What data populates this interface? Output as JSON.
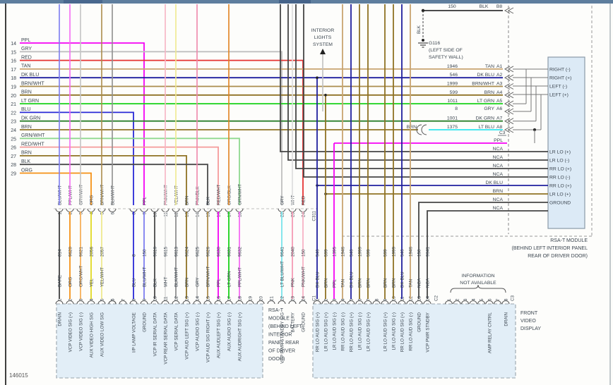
{
  "page": {
    "doc_number": "146015"
  },
  "colors": {
    "PPL": "#f400f4",
    "GRY": "#bfbfbf",
    "RED": "#e53333",
    "TAN": "#c9a470",
    "DK BLU": "#1f1f9e",
    "BRN/WHT": "#ab8c4c",
    "BRN": "#8f7224",
    "LT GRN": "#17d117",
    "BLU": "#2929d6",
    "DK GRN": "#2a7f2a",
    "GRN/WHT": "#8fd98f",
    "RED/WHT": "#f59a9a",
    "BLK": "#4a4a4a",
    "ORG": "#f59116",
    "PPL/WHT": "#f46bf4",
    "GRY/WHT": "#c4c4c4",
    "ORG/WHT": "#f5b05a",
    "YEL": "#e0d81f",
    "YEL/WHT": "#efe98f",
    "BLU/WHT": "#7d7df0",
    "BLK/WHT": "#8f8f8f",
    "WHT": "#dcdcdc",
    "PNK/WHT": "#f7b3c4",
    "PNK/BLK": "#ef86ab",
    "ORG/BLK": "#e0821f",
    "LT BLU": "#2ee4ef",
    "LT BLU/WHT": "#79e4ea",
    "PNK": "#f49ab4",
    "BARE": "#3f3f3f",
    "NCA": "#454545",
    "accent_bar": "#5e7e9e",
    "box_fill": "#e2eef7",
    "module_fill": "#dceaf6",
    "text": "#3c4650",
    "gray_wire": "#8f8f8f"
  },
  "interior_lights_note": {
    "lines": [
      "INTERIOR",
      "LIGHTS",
      "SYSTEM"
    ]
  },
  "ground_ref": {
    "b8_circuit": "150",
    "b8_color": "BLK",
    "b8_pin": "B8",
    "wire_color_label": "BLK",
    "id": "G116",
    "location_lines": [
      "(LEFT SIDE OF",
      "SAFETY WALL)"
    ]
  },
  "left_wires": [
    {
      "pin": "14",
      "color": "PPL"
    },
    {
      "pin": "15",
      "color": "GRY"
    },
    {
      "pin": "16",
      "color": "RED"
    },
    {
      "pin": "17",
      "color": "TAN"
    },
    {
      "pin": "18",
      "color": "DK BLU"
    },
    {
      "pin": "19",
      "color": "BRN/WHT"
    },
    {
      "pin": "20",
      "color": "BRN"
    },
    {
      "pin": "21",
      "color": "LT GRN"
    },
    {
      "pin": "22",
      "color": "BLU"
    },
    {
      "pin": "23",
      "color": "DK GRN"
    },
    {
      "pin": "24",
      "color": "BRN"
    },
    {
      "pin": "25",
      "color": "GRN/WHT"
    },
    {
      "pin": "26",
      "color": "RED/WHT"
    },
    {
      "pin": "27",
      "color": "BRN"
    },
    {
      "pin": "28",
      "color": "BLK"
    },
    {
      "pin": "29",
      "color": "ORG"
    }
  ],
  "rsa_module": {
    "a_pins": [
      {
        "circuit": "1946",
        "color": "TAN",
        "pin": "A1"
      },
      {
        "circuit": "546",
        "color": "DK BLU",
        "pin": "A2"
      },
      {
        "circuit": "1999",
        "color": "BRN/WHT",
        "pin": "A3"
      },
      {
        "circuit": "599",
        "color": "BRN",
        "pin": "A4"
      },
      {
        "circuit": "1011",
        "color": "LT GRN",
        "pin": "A5"
      },
      {
        "circuit": "8",
        "color": "GRY",
        "pin": "A6"
      },
      {
        "circuit": "1001",
        "color": "DK GRN",
        "pin": "A7"
      },
      {
        "circuit": "1375",
        "color": "LT BLU",
        "pin": "A8",
        "splice_from": "BRN"
      }
    ],
    "connector_label": "C3",
    "upper_pins": [
      "RIGHT (-)",
      "RIGHT (+)",
      "LEFT (-)",
      "LEFT (+)"
    ],
    "lower_pins": [
      "LR LO (+)",
      "LR LO (-)",
      "RR LO (+)",
      "RR LO (-)",
      "RR LO (+)",
      "LR LO (+)",
      "GROUND"
    ],
    "feed_rows": [
      {
        "label": "PPL"
      },
      {
        "label": "NCA"
      },
      {
        "label": "NCA"
      },
      {
        "label": "NCA"
      },
      {
        "label": "NCA"
      },
      {
        "label": "DK BLU"
      },
      {
        "label": "BRN"
      },
      {
        "label": "NCA"
      },
      {
        "label": "NCA"
      }
    ],
    "caption_lines": [
      "RSA-T MODULE",
      "(BEHIND LEFT INTERIOR PANEL",
      "REAR OF DRIVER DOOR)"
    ]
  },
  "connector_c311": {
    "label": "C311",
    "bottom_label": "C1",
    "pins": [
      {
        "n": 1,
        "top": "BLU/WHT",
        "circuit": "814",
        "bottom": "BARE",
        "func": "DRAIN",
        "feed": "top"
      },
      {
        "n": 2,
        "top": "PPL/WHT",
        "circuit": "9620",
        "bottom": "ORG",
        "func": "VCP VIDEO SIG (+)",
        "feed": "top"
      },
      {
        "n": 3,
        "top": "GRY/WHT",
        "circuit": "9621",
        "bottom": "ORG/WHT",
        "func": "VCP VIDEO SIG (-)",
        "feed": "top"
      },
      {
        "n": 4,
        "top": "ORG",
        "circuit": "2056",
        "bottom": "YEL",
        "func": "AUX VIDEO HIGH SIG",
        "feed": "left"
      },
      {
        "n": 5,
        "top": "BRN/WHT",
        "circuit": "2057",
        "bottom": "YEL/WHT",
        "func": "AUX VIDEO LOW SIG",
        "feed": "top"
      },
      {
        "n": 6,
        "top": "BLK/WHT",
        "circuit": null,
        "bottom": null,
        "func": null,
        "feed": "top"
      },
      {
        "n": 8,
        "top": null,
        "circuit": "8",
        "bottom": "BLU",
        "func": "I/P LAMP VOLTAGE",
        "feed": "left"
      },
      {
        "n": 9,
        "top": "PPL",
        "circuit": "150",
        "bottom": "BLU/WHT",
        "func": "GROUND",
        "feed": "left"
      },
      {
        "n": 10,
        "top": null,
        "circuit": "9616",
        "bottom": "BLK",
        "func": "VCP IR SERIAL DATA",
        "feed": null
      },
      {
        "n": 11,
        "top": "PNK/WHT",
        "circuit": "9615",
        "bottom": "WHT",
        "func": "VCP REAR SERIAL DATA",
        "feed": "top"
      },
      {
        "n": 12,
        "top": "YEL/WHT",
        "circuit": "9613",
        "bottom": "BLK/WHT",
        "func": "VCP SERIAL DATA",
        "feed": "top"
      },
      {
        "n": 13,
        "top": "BRN",
        "circuit": "9624",
        "bottom": "BRN",
        "func": "VCP AUD LEFT SIG (+)",
        "feed": "left"
      },
      {
        "n": 14,
        "top": "PNK/BLK",
        "circuit": "9625",
        "bottom": "GRY",
        "func": "VCP AUDIO SIG (-)",
        "feed": "top"
      },
      {
        "n": 15,
        "top": "BLK",
        "circuit": "9626",
        "bottom": "BRN/WHT",
        "func": "VCP AUD SIG RIGHT (+)",
        "feed": "left"
      },
      {
        "n": 16,
        "top": "RED/WHT",
        "circuit": "9630",
        "bottom": "PPL",
        "func": "AUX AUDLEFT SIG (+)",
        "feed": "left"
      },
      {
        "n": 17,
        "top": "ORG/BLK",
        "circuit": "9631",
        "bottom": "LT GRN",
        "func": "AUX AUDIO SIG (-)",
        "feed": "top"
      },
      {
        "n": 18,
        "top": "GRN/WHT",
        "circuit": "9632",
        "bottom": "PPL/WHT",
        "func": "AUX AUDRIGHT SIG (+)",
        "feed": "left"
      },
      {
        "n": 22,
        "top": "GRY",
        "circuit": "9641",
        "bottom": "LT BLU/WHT",
        "func": "VCP PWR STANDBY SIG",
        "feed": "left"
      },
      {
        "n": 23,
        "top": "WHT",
        "circuit": "2040",
        "bottom": "PNK",
        "func": "BATTERY",
        "feed": "top"
      },
      {
        "n": 24,
        "top": "RED",
        "circuit": "150",
        "bottom": "PNK/WHT",
        "func": "GROUND",
        "feed": "left"
      }
    ],
    "empty_bottom_pins": [
      6,
      7,
      19,
      20,
      21
    ]
  },
  "rsa_box_caption_lines": [
    "RSA-T",
    "MODULE",
    "(BEHIND LEFT",
    "INTERIOR",
    "PANEL REAR",
    "OF DRIVER",
    "DOOR)"
  ],
  "connector_c2": {
    "label": "C2",
    "pins": [
      {
        "n": 1,
        "circuit": "546",
        "color": "DK BLU",
        "func": "RR LO AUD SIG (+)"
      },
      {
        "n": 2,
        "circuit": "599",
        "color": "BRN",
        "func": "LR LO AUD SIG (+)"
      },
      {
        "n": 3,
        "circuit": "1395",
        "color": "PPL",
        "func": "LR LO AUD SIG (-)"
      },
      {
        "n": 4,
        "circuit": "1946",
        "color": "TAN",
        "func": "RR LO AUD SIG (-)"
      },
      {
        "n": 5,
        "circuit": "546",
        "color": "DK BLU",
        "func": "RR LO AUD SIG (+)"
      },
      {
        "n": 6,
        "circuit": "1999",
        "color": "BRN",
        "func": "LR LO AUD SIG (-)"
      },
      {
        "n": 7,
        "circuit": "599",
        "color": "BRN",
        "func": "LR LO AUD SIG (+)"
      },
      {
        "n": 8,
        "circuit": null,
        "color": null,
        "func": null
      },
      {
        "n": 9,
        "circuit": "599",
        "color": "BRN",
        "func": "LR LO AUD SIG (+)"
      },
      {
        "n": 10,
        "circuit": "1999",
        "color": "BRN",
        "func": "LR LO AUD SIG (-)"
      },
      {
        "n": 11,
        "circuit": "546",
        "color": "DK BLU",
        "func": "RR LO AUD SIG (+)"
      },
      {
        "n": 12,
        "circuit": "1946",
        "color": "TAN",
        "func": "RR LO AUD SIG (-)"
      },
      {
        "n": 13,
        "circuit": "150",
        "color": "NCA",
        "func": "GROUND"
      },
      {
        "n": 14,
        "circuit": "9641",
        "color": "NCA",
        "func": "VCP PWR STNDBY"
      }
    ]
  },
  "connector_c3_bottom": {
    "label": "C3",
    "pins": [
      {
        "n": 1
      },
      {
        "n": 2
      },
      {
        "n": 3
      },
      {
        "n": 4
      },
      {
        "n": 5
      },
      {
        "n": 6,
        "func": "AMP RELAY CNTRL"
      },
      {
        "n": 7
      },
      {
        "n": 8,
        "func": "DRAIN"
      }
    ],
    "note_lines": [
      "INFORMATION",
      "NOT AVAILABLE"
    ]
  },
  "front_display_caption_lines": [
    "FRONT",
    "VIDEO",
    "DISPLAY"
  ]
}
